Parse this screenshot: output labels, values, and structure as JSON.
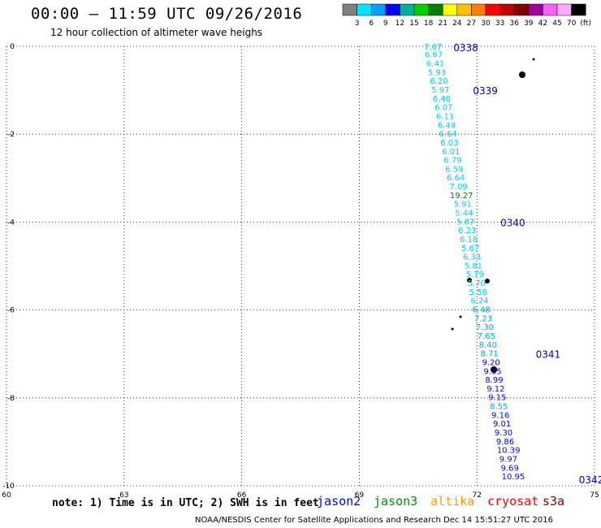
{
  "title": "00:00 – 11:59 UTC 09/26/2016",
  "subtitle": "12 hour collection of altimeter wave heighs",
  "colorbar": {
    "colors": [
      "#7f7f7f",
      "#00e5ff",
      "#00a0ff",
      "#0000ff",
      "#00b0a0",
      "#00d000",
      "#008000",
      "#ffff00",
      "#ffc000",
      "#ff8000",
      "#ff0000",
      "#c00000",
      "#800000",
      "#a000a0",
      "#ff60ff",
      "#ffaaff",
      "#000000"
    ],
    "labels": [
      "3",
      "6",
      "9",
      "12",
      "15",
      "18",
      "21",
      "24",
      "27",
      "30",
      "33",
      "36",
      "39",
      "42",
      "45",
      "70",
      "(ft)"
    ]
  },
  "axes": {
    "x_ticks": [
      "60",
      "63",
      "66",
      "69",
      "72",
      "75"
    ],
    "y_ticks": [
      "0",
      "-2",
      "-4",
      "-6",
      "-8",
      "-10"
    ]
  },
  "chart_data": {
    "type": "scatter",
    "xlim": [
      60,
      75
    ],
    "ylim": [
      -10,
      0
    ],
    "grid": true,
    "track_times": [
      {
        "label": "0338",
        "lon": 71.4,
        "lat": -0.02
      },
      {
        "label": "0339",
        "lon": 71.9,
        "lat": -1.0
      },
      {
        "label": "0340",
        "lon": 72.6,
        "lat": -4.0
      },
      {
        "label": "0341",
        "lon": 73.5,
        "lat": -7.0
      },
      {
        "label": "0342",
        "lon": 74.6,
        "lat": -9.85
      }
    ],
    "points": [
      {
        "v": "7.67",
        "lon": 70.65,
        "lat": 0.0,
        "color": "#00c8ff"
      },
      {
        "v": "6.67",
        "lon": 70.67,
        "lat": -0.18,
        "color": "#00c8ff"
      },
      {
        "v": "6.41",
        "lon": 70.71,
        "lat": -0.38,
        "color": "#00c8ff"
      },
      {
        "v": "5.93",
        "lon": 70.75,
        "lat": -0.58,
        "color": "#00c8ff"
      },
      {
        "v": "6.20",
        "lon": 70.8,
        "lat": -0.78,
        "color": "#00c8ff"
      },
      {
        "v": "5.97",
        "lon": 70.84,
        "lat": -0.98,
        "color": "#00c8ff"
      },
      {
        "v": "6.48",
        "lon": 70.87,
        "lat": -1.18,
        "color": "#00c8ff"
      },
      {
        "v": "6.07",
        "lon": 70.92,
        "lat": -1.38,
        "color": "#00c8ff"
      },
      {
        "v": "6.11",
        "lon": 70.96,
        "lat": -1.58,
        "color": "#00c8ff"
      },
      {
        "v": "6.49",
        "lon": 71.0,
        "lat": -1.78,
        "color": "#00c8ff"
      },
      {
        "v": "6.64",
        "lon": 71.03,
        "lat": -1.98,
        "color": "#00c8ff"
      },
      {
        "v": "6.03",
        "lon": 71.07,
        "lat": -2.18,
        "color": "#00c8ff"
      },
      {
        "v": "6.01",
        "lon": 71.11,
        "lat": -2.38,
        "color": "#00c8ff"
      },
      {
        "v": "6.79",
        "lon": 71.15,
        "lat": -2.58,
        "color": "#00c8ff"
      },
      {
        "v": "6.59",
        "lon": 71.19,
        "lat": -2.78,
        "color": "#00c8ff"
      },
      {
        "v": "6.64",
        "lon": 71.23,
        "lat": -2.98,
        "color": "#00c8ff"
      },
      {
        "v": "7.09",
        "lon": 71.3,
        "lat": -3.18,
        "color": "#00c8ff"
      },
      {
        "v": "19.27",
        "lon": 71.31,
        "lat": -3.38,
        "color": "#008000"
      },
      {
        "v": "5.91",
        "lon": 71.41,
        "lat": -3.58,
        "color": "#00c8ff"
      },
      {
        "v": "5.44",
        "lon": 71.44,
        "lat": -3.78,
        "color": "#00c8ff"
      },
      {
        "v": "5.87",
        "lon": 71.48,
        "lat": -3.98,
        "color": "#00c8ff"
      },
      {
        "v": "6.23",
        "lon": 71.52,
        "lat": -4.18,
        "color": "#00c8ff"
      },
      {
        "v": "6.18",
        "lon": 71.56,
        "lat": -4.38,
        "color": "#00c8ff"
      },
      {
        "v": "5.67",
        "lon": 71.6,
        "lat": -4.58,
        "color": "#00c8ff"
      },
      {
        "v": "6.33",
        "lon": 71.64,
        "lat": -4.78,
        "color": "#00c8ff"
      },
      {
        "v": "5.81",
        "lon": 71.68,
        "lat": -4.98,
        "color": "#00c8ff"
      },
      {
        "v": "5.79",
        "lon": 71.72,
        "lat": -5.18,
        "color": "#00c8ff"
      },
      {
        "v": "5.70",
        "lon": 71.76,
        "lat": -5.38,
        "color": "#00c8ff"
      },
      {
        "v": "5.58",
        "lon": 71.8,
        "lat": -5.58,
        "color": "#00c8ff"
      },
      {
        "v": "6.24",
        "lon": 71.84,
        "lat": -5.78,
        "color": "#00c8ff"
      },
      {
        "v": "6.48",
        "lon": 71.88,
        "lat": -5.98,
        "color": "#00a0ff"
      },
      {
        "v": "7.23",
        "lon": 71.93,
        "lat": -6.18,
        "color": "#00a0ff"
      },
      {
        "v": "7.30",
        "lon": 71.97,
        "lat": -6.38,
        "color": "#00a0ff"
      },
      {
        "v": "7.65",
        "lon": 72.01,
        "lat": -6.58,
        "color": "#00a0ff"
      },
      {
        "v": "8.40",
        "lon": 72.05,
        "lat": -6.78,
        "color": "#00a0ff"
      },
      {
        "v": "8.71",
        "lon": 72.09,
        "lat": -6.98,
        "color": "#00a0ff"
      },
      {
        "v": "9.20",
        "lon": 72.13,
        "lat": -7.18,
        "color": "#0000ff"
      },
      {
        "v": "9.35",
        "lon": 72.17,
        "lat": -7.38,
        "color": "#0000ff"
      },
      {
        "v": "8.99",
        "lon": 72.21,
        "lat": -7.58,
        "color": "#0000ff"
      },
      {
        "v": "9.12",
        "lon": 72.25,
        "lat": -7.78,
        "color": "#0000ff"
      },
      {
        "v": "9.15",
        "lon": 72.29,
        "lat": -7.98,
        "color": "#0000ff"
      },
      {
        "v": "8.55",
        "lon": 72.33,
        "lat": -8.18,
        "color": "#00a0ff"
      },
      {
        "v": "9.16",
        "lon": 72.37,
        "lat": -8.38,
        "color": "#0000ff"
      },
      {
        "v": "9.01",
        "lon": 72.41,
        "lat": -8.58,
        "color": "#0000ff"
      },
      {
        "v": "9.30",
        "lon": 72.45,
        "lat": -8.78,
        "color": "#0000ff"
      },
      {
        "v": "9.86",
        "lon": 72.49,
        "lat": -8.98,
        "color": "#0000ff"
      },
      {
        "v": "10.39",
        "lon": 72.51,
        "lat": -9.18,
        "color": "#0000ff"
      },
      {
        "v": "9.97",
        "lon": 72.57,
        "lat": -9.38,
        "color": "#0000ff"
      },
      {
        "v": "9.69",
        "lon": 72.61,
        "lat": -9.58,
        "color": "#0000ff"
      },
      {
        "v": "10.95",
        "lon": 72.63,
        "lat": -9.78,
        "color": "#0000ff"
      }
    ]
  },
  "note": "note: 1) Time is in UTC; 2) SWH is in feet",
  "satellites": [
    {
      "name": "jason2",
      "color": "#0000ff"
    },
    {
      "name": "jason3",
      "color": "#009000"
    },
    {
      "name": "altika",
      "color": "#ff9900"
    },
    {
      "name": "cryosat",
      "color": "#ff0000"
    },
    {
      "name": "s3a",
      "color": "#800000"
    }
  ],
  "footer": "NOAA/NESDIS Center for Satellite Applications and Research   Dec 14 15:51:27 UTC 2016"
}
